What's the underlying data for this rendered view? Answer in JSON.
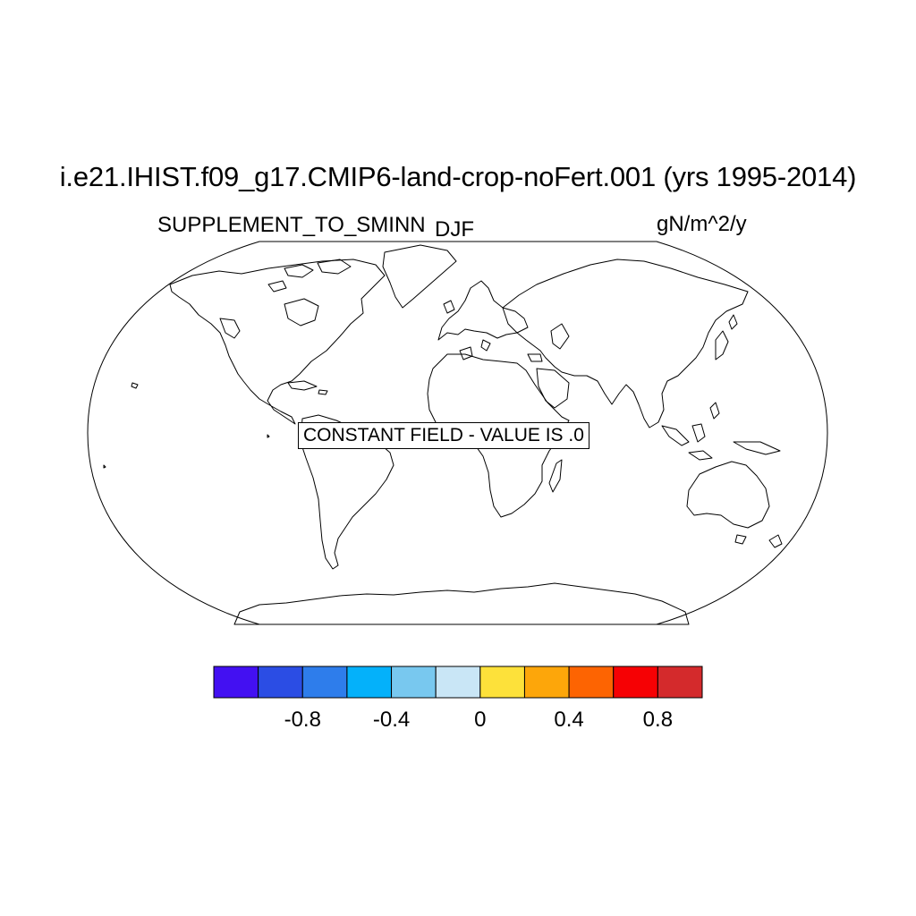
{
  "plot": {
    "title": "i.e21.IHIST.f09_g17.CMIP6-land-crop-noFert.001 (yrs 1995-2014)",
    "left_string": "SUPPLEMENT_TO_SMINN",
    "center_string": "DJF",
    "right_string": "gN/m^2/y",
    "constant_field_message": "CONSTANT FIELD - VALUE IS .0"
  },
  "map": {
    "projection": "robinson",
    "coastlines": true
  },
  "colorbar": {
    "colors": [
      "#4310f2",
      "#2b4de4",
      "#2e7deb",
      "#04b1fa",
      "#78c8ef",
      "#c9e6f6",
      "#fde13a",
      "#fda60a",
      "#fd6402",
      "#f60104",
      "#d42a2c"
    ],
    "tick_labels": [
      "-0.8",
      "-0.4",
      "0",
      "0.4",
      "0.8"
    ],
    "tick_after_box": [
      2,
      4,
      6,
      8,
      10
    ]
  }
}
